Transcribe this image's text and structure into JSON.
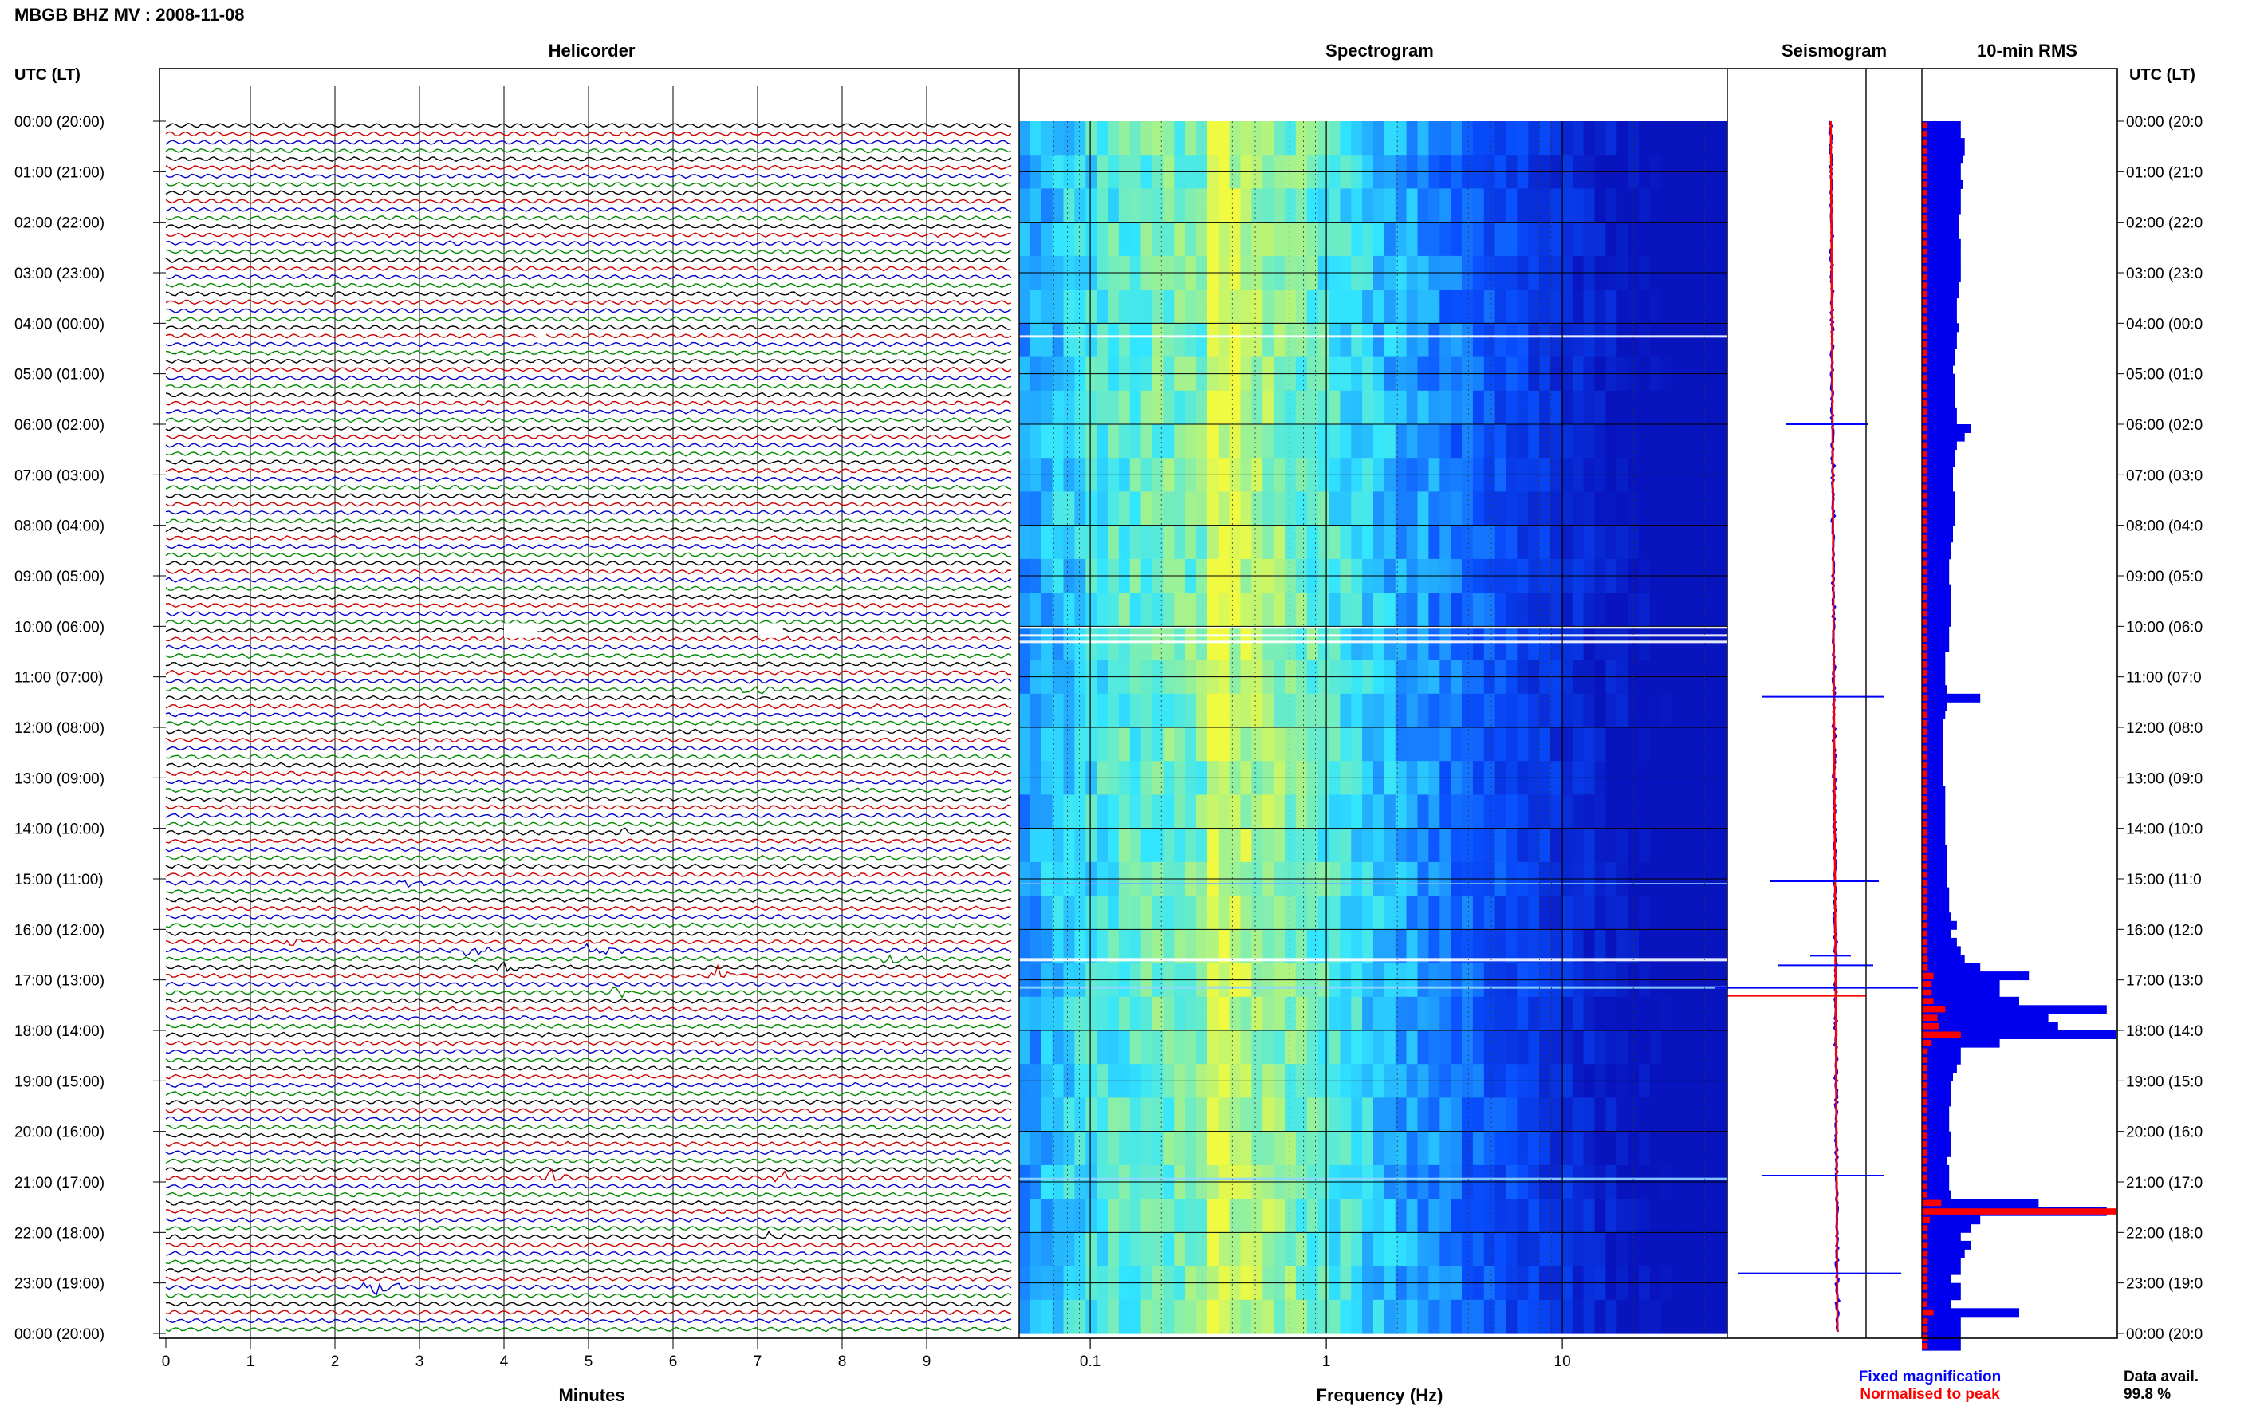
{
  "title": "MBGB BHZ MV : 2008-11-08",
  "panels": {
    "helicorder": "Helicorder",
    "spectrogram": "Spectrogram",
    "seismogram": "Seismogram",
    "rms": "10-min RMS"
  },
  "time_axis_label": "UTC (LT)",
  "time_labels": [
    "00:00 (20:00)",
    "01:00 (21:00)",
    "02:00 (22:00)",
    "03:00 (23:00)",
    "04:00 (00:00)",
    "05:00 (01:00)",
    "06:00 (02:00)",
    "07:00 (03:00)",
    "08:00 (04:00)",
    "09:00 (05:00)",
    "10:00 (06:00)",
    "11:00 (07:00)",
    "12:00 (08:00)",
    "13:00 (09:00)",
    "14:00 (10:00)",
    "15:00 (11:00)",
    "16:00 (12:00)",
    "17:00 (13:00)",
    "18:00 (14:00)",
    "19:00 (15:00)",
    "20:00 (16:00)",
    "21:00 (17:00)",
    "22:00 (18:00)",
    "23:00 (19:00)",
    "00:00 (20:00)"
  ],
  "time_labels_right": [
    "00:00 (20:0",
    "01:00 (21:0",
    "02:00 (22:0",
    "03:00 (23:0",
    "04:00 (00:0",
    "05:00 (01:0",
    "06:00 (02:0",
    "07:00 (03:0",
    "08:00 (04:0",
    "09:00 (05:0",
    "10:00 (06:0",
    "11:00 (07:0",
    "12:00 (08:0",
    "13:00 (09:0",
    "14:00 (10:0",
    "15:00 (11:0",
    "16:00 (12:0",
    "17:00 (13:0",
    "18:00 (14:0",
    "19:00 (15:0",
    "20:00 (16:0",
    "21:00 (17:0",
    "22:00 (18:0",
    "23:00 (19:0",
    "00:00 (20:0"
  ],
  "minutes_label": "Minutes",
  "minutes_ticks": [
    "0",
    "1",
    "2",
    "3",
    "4",
    "5",
    "6",
    "7",
    "8",
    "9"
  ],
  "frequency_label": "Frequency (Hz)",
  "frequency_ticks": [
    "0.1",
    "1",
    "10"
  ],
  "legend": {
    "fixed": "Fixed magnification",
    "normalised": "Normalised to peak",
    "fixed_color": "#0000ff",
    "normalised_color": "#ff0000"
  },
  "data_avail": {
    "label": "Data avail.",
    "value": "99.8 %"
  },
  "trace_colors": [
    "#000000",
    "#cc0000",
    "#0000cc",
    "#008800"
  ],
  "chart_data": {
    "type": "helicorder",
    "minutes_range": [
      0,
      10
    ],
    "frequency_range_hz": [
      0.05,
      50
    ],
    "frequency_scale": "log",
    "spectral_peak_hz": 0.3,
    "events": [
      {
        "time": "11:10",
        "minute": 6.9,
        "amp": 1.2
      },
      {
        "time": "14:00",
        "minute": 5.4,
        "amp": 0.6
      },
      {
        "time": "15:00",
        "minute": 2.8,
        "amp": 0.5
      },
      {
        "time": "16:10",
        "minute": 1.5,
        "amp": 1.2
      },
      {
        "time": "16:20",
        "minute": 3.5,
        "amp": 1.4
      },
      {
        "time": "16:20",
        "minute": 5.0,
        "amp": 1.3
      },
      {
        "time": "16:30",
        "minute": 8.5,
        "amp": 1.2
      },
      {
        "time": "16:40",
        "minute": 4.0,
        "amp": 1.5
      },
      {
        "time": "16:50",
        "minute": 6.5,
        "amp": 1.2
      },
      {
        "time": "17:10",
        "minute": 5.3,
        "amp": 0.8
      },
      {
        "time": "20:50",
        "minute": 4.5,
        "amp": 1.2
      },
      {
        "time": "20:50",
        "minute": 7.2,
        "amp": 1.0
      },
      {
        "time": "22:00",
        "minute": 7.1,
        "amp": 0.5
      },
      {
        "time": "23:00",
        "minute": 2.4,
        "amp": 2.5
      }
    ],
    "rms_blue": [
      0.2,
      0.2,
      0.22,
      0.22,
      0.21,
      0.2,
      0.2,
      0.21,
      0.2,
      0.2,
      0.2,
      0.19,
      0.19,
      0.19,
      0.2,
      0.2,
      0.2,
      0.2,
      0.2,
      0.19,
      0.19,
      0.18,
      0.18,
      0.18,
      0.19,
      0.18,
      0.18,
      0.17,
      0.17,
      0.16,
      0.17,
      0.17,
      0.17,
      0.17,
      0.18,
      0.18,
      0.25,
      0.22,
      0.18,
      0.17,
      0.17,
      0.16,
      0.16,
      0.16,
      0.17,
      0.17,
      0.17,
      0.17,
      0.16,
      0.16,
      0.15,
      0.15,
      0.14,
      0.14,
      0.14,
      0.15,
      0.15,
      0.15,
      0.15,
      0.15,
      0.14,
      0.14,
      0.14,
      0.12,
      0.12,
      0.12,
      0.12,
      0.13,
      0.3,
      0.13,
      0.12,
      0.11,
      0.11,
      0.11,
      0.11,
      0.11,
      0.11,
      0.11,
      0.11,
      0.12,
      0.12,
      0.12,
      0.12,
      0.12,
      0.12,
      0.12,
      0.13,
      0.13,
      0.13,
      0.13,
      0.13,
      0.14,
      0.14,
      0.14,
      0.15,
      0.18,
      0.15,
      0.18,
      0.2,
      0.22,
      0.3,
      0.55,
      0.4,
      0.4,
      0.5,
      0.95,
      0.65,
      0.7,
      1.0,
      0.4,
      0.2,
      0.2,
      0.18,
      0.16,
      0.15,
      0.15,
      0.15,
      0.14,
      0.14,
      0.14,
      0.15,
      0.15,
      0.15,
      0.13,
      0.14,
      0.14,
      0.14,
      0.15,
      0.6,
      0.95,
      0.3,
      0.25,
      0.2,
      0.25,
      0.22,
      0.2,
      0.2,
      0.15,
      0.2,
      0.2,
      0.15,
      0.5,
      0.2,
      0.2,
      0.2,
      0.2
    ],
    "rms_red": [
      0.02,
      0.02,
      0.02,
      0.02,
      0.02,
      0.02,
      0.02,
      0.02,
      0.02,
      0.02,
      0.02,
      0.02,
      0.02,
      0.02,
      0.02,
      0.02,
      0.02,
      0.02,
      0.02,
      0.02,
      0.02,
      0.02,
      0.02,
      0.02,
      0.02,
      0.02,
      0.02,
      0.02,
      0.02,
      0.02,
      0.02,
      0.02,
      0.02,
      0.02,
      0.02,
      0.02,
      0.02,
      0.02,
      0.02,
      0.02,
      0.02,
      0.02,
      0.02,
      0.02,
      0.02,
      0.02,
      0.02,
      0.02,
      0.02,
      0.02,
      0.02,
      0.02,
      0.02,
      0.02,
      0.02,
      0.02,
      0.02,
      0.02,
      0.02,
      0.02,
      0.02,
      0.02,
      0.02,
      0.02,
      0.02,
      0.02,
      0.02,
      0.02,
      0.03,
      0.02,
      0.02,
      0.02,
      0.02,
      0.02,
      0.02,
      0.02,
      0.02,
      0.02,
      0.02,
      0.02,
      0.02,
      0.02,
      0.02,
      0.02,
      0.02,
      0.02,
      0.02,
      0.02,
      0.02,
      0.02,
      0.02,
      0.02,
      0.02,
      0.02,
      0.02,
      0.02,
      0.02,
      0.02,
      0.02,
      0.03,
      0.03,
      0.06,
      0.05,
      0.05,
      0.06,
      0.12,
      0.08,
      0.09,
      0.2,
      0.05,
      0.03,
      0.03,
      0.02,
      0.02,
      0.02,
      0.02,
      0.02,
      0.02,
      0.02,
      0.02,
      0.02,
      0.02,
      0.02,
      0.02,
      0.02,
      0.02,
      0.02,
      0.02,
      0.1,
      1.0,
      0.04,
      0.03,
      0.03,
      0.03,
      0.03,
      0.03,
      0.03,
      0.02,
      0.03,
      0.03,
      0.02,
      0.06,
      0.03,
      0.03,
      0.03,
      0.03
    ]
  }
}
